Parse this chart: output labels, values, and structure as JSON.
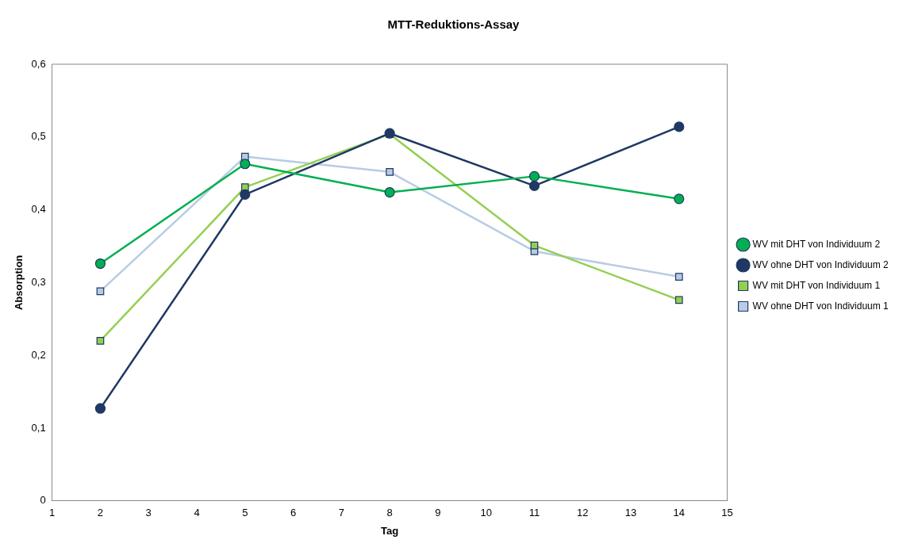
{
  "chart_data": {
    "type": "line",
    "title": "MTT-Reduktions-Assay",
    "xlabel": "Tag",
    "ylabel": "Absorption",
    "x": [
      2,
      5,
      8,
      11,
      14
    ],
    "xlim": [
      1,
      15
    ],
    "xticks": [
      1,
      2,
      3,
      4,
      5,
      6,
      7,
      8,
      9,
      10,
      11,
      12,
      13,
      14,
      15
    ],
    "ylim": [
      0,
      0.6
    ],
    "yticks": [
      {
        "value": 0,
        "label": "0"
      },
      {
        "value": 0.1,
        "label": "0,1"
      },
      {
        "value": 0.2,
        "label": "0,2"
      },
      {
        "value": 0.3,
        "label": "0,3"
      },
      {
        "value": 0.4,
        "label": "0,4"
      },
      {
        "value": 0.5,
        "label": "0,5"
      },
      {
        "value": 0.6,
        "label": "0,6"
      }
    ],
    "grid": false,
    "legend": "right",
    "line_style": "solid",
    "series": [
      {
        "name": "WV ohne DHT von Individuum 1",
        "color": "#b8cce4",
        "marker": "square",
        "values": [
          0.288,
          0.473,
          0.452,
          0.343,
          0.308
        ]
      },
      {
        "name": "WV mit DHT von Individuum 1",
        "color": "#92d050",
        "marker": "square",
        "values": [
          0.22,
          0.431,
          0.504,
          0.351,
          0.276
        ]
      },
      {
        "name": "WV ohne DHT von Individuum 2",
        "color": "#1f3864",
        "marker": "circle",
        "values": [
          0.127,
          0.421,
          0.505,
          0.433,
          0.514
        ]
      },
      {
        "name": "WV mit DHT von Individuum 2",
        "color": "#00b050",
        "marker": "circle",
        "values": [
          0.326,
          0.463,
          0.424,
          0.446,
          0.415
        ]
      }
    ]
  }
}
